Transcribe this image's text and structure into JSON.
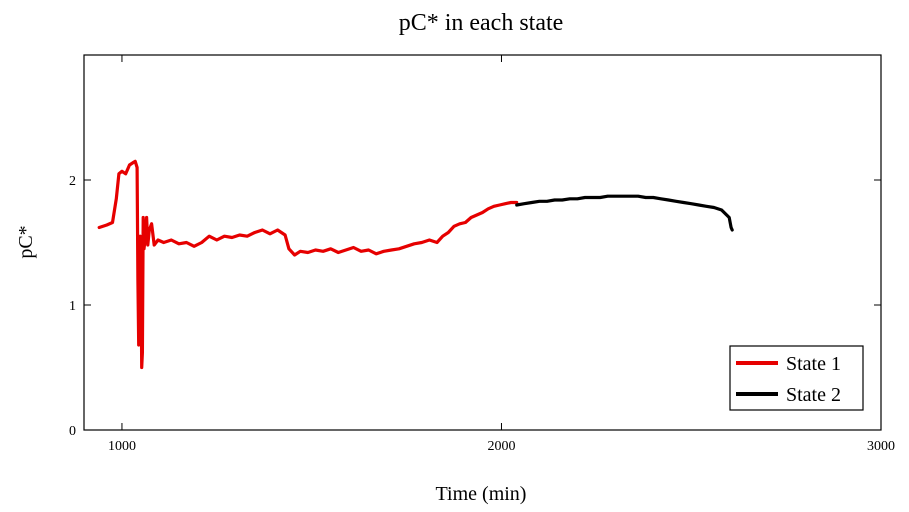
{
  "chart_data": {
    "type": "line",
    "title": "pC* in each state",
    "xlabel": "Time (min)",
    "ylabel": "pC*",
    "xlim": [
      900,
      3000
    ],
    "ylim": [
      0,
      3
    ],
    "x_ticks": [
      1000,
      2000,
      3000
    ],
    "y_ticks": [
      0,
      1,
      2
    ],
    "grid": false,
    "legend_position": "bottom-right",
    "series": [
      {
        "name": "State 1",
        "color": "#e60000",
        "points": [
          [
            940,
            1.62
          ],
          [
            960,
            1.64
          ],
          [
            975,
            1.66
          ],
          [
            985,
            1.85
          ],
          [
            992,
            2.05
          ],
          [
            1000,
            2.07
          ],
          [
            1010,
            2.05
          ],
          [
            1020,
            2.12
          ],
          [
            1030,
            2.14
          ],
          [
            1035,
            2.15
          ],
          [
            1040,
            2.1
          ],
          [
            1042,
            1.2
          ],
          [
            1044,
            0.68
          ],
          [
            1046,
            1.1
          ],
          [
            1048,
            1.55
          ],
          [
            1050,
            1.4
          ],
          [
            1052,
            0.5
          ],
          [
            1054,
            0.62
          ],
          [
            1056,
            1.7
          ],
          [
            1058,
            1.45
          ],
          [
            1062,
            1.55
          ],
          [
            1065,
            1.7
          ],
          [
            1068,
            1.48
          ],
          [
            1072,
            1.6
          ],
          [
            1078,
            1.65
          ],
          [
            1085,
            1.48
          ],
          [
            1095,
            1.52
          ],
          [
            1110,
            1.5
          ],
          [
            1130,
            1.52
          ],
          [
            1150,
            1.49
          ],
          [
            1170,
            1.5
          ],
          [
            1190,
            1.47
          ],
          [
            1210,
            1.5
          ],
          [
            1230,
            1.55
          ],
          [
            1250,
            1.52
          ],
          [
            1270,
            1.55
          ],
          [
            1290,
            1.54
          ],
          [
            1310,
            1.56
          ],
          [
            1330,
            1.55
          ],
          [
            1350,
            1.58
          ],
          [
            1370,
            1.6
          ],
          [
            1390,
            1.57
          ],
          [
            1410,
            1.6
          ],
          [
            1430,
            1.56
          ],
          [
            1440,
            1.45
          ],
          [
            1455,
            1.4
          ],
          [
            1470,
            1.43
          ],
          [
            1490,
            1.42
          ],
          [
            1510,
            1.44
          ],
          [
            1530,
            1.43
          ],
          [
            1550,
            1.45
          ],
          [
            1570,
            1.42
          ],
          [
            1590,
            1.44
          ],
          [
            1610,
            1.46
          ],
          [
            1630,
            1.43
          ],
          [
            1650,
            1.44
          ],
          [
            1670,
            1.41
          ],
          [
            1690,
            1.43
          ],
          [
            1710,
            1.44
          ],
          [
            1730,
            1.45
          ],
          [
            1750,
            1.47
          ],
          [
            1770,
            1.49
          ],
          [
            1790,
            1.5
          ],
          [
            1810,
            1.52
          ],
          [
            1830,
            1.5
          ],
          [
            1845,
            1.55
          ],
          [
            1860,
            1.58
          ],
          [
            1875,
            1.63
          ],
          [
            1890,
            1.65
          ],
          [
            1905,
            1.66
          ],
          [
            1920,
            1.7
          ],
          [
            1935,
            1.72
          ],
          [
            1950,
            1.74
          ],
          [
            1965,
            1.77
          ],
          [
            1980,
            1.79
          ],
          [
            1995,
            1.8
          ],
          [
            2010,
            1.81
          ],
          [
            2025,
            1.82
          ],
          [
            2040,
            1.82
          ]
        ]
      },
      {
        "name": "State 2",
        "color": "#000000",
        "points": [
          [
            2040,
            1.8
          ],
          [
            2060,
            1.81
          ],
          [
            2080,
            1.82
          ],
          [
            2100,
            1.83
          ],
          [
            2120,
            1.83
          ],
          [
            2140,
            1.84
          ],
          [
            2160,
            1.84
          ],
          [
            2180,
            1.85
          ],
          [
            2200,
            1.85
          ],
          [
            2220,
            1.86
          ],
          [
            2240,
            1.86
          ],
          [
            2260,
            1.86
          ],
          [
            2280,
            1.87
          ],
          [
            2300,
            1.87
          ],
          [
            2320,
            1.87
          ],
          [
            2340,
            1.87
          ],
          [
            2360,
            1.87
          ],
          [
            2380,
            1.86
          ],
          [
            2400,
            1.86
          ],
          [
            2420,
            1.85
          ],
          [
            2440,
            1.84
          ],
          [
            2460,
            1.83
          ],
          [
            2480,
            1.82
          ],
          [
            2500,
            1.81
          ],
          [
            2520,
            1.8
          ],
          [
            2540,
            1.79
          ],
          [
            2560,
            1.78
          ],
          [
            2580,
            1.76
          ],
          [
            2590,
            1.73
          ],
          [
            2600,
            1.7
          ],
          [
            2605,
            1.62
          ],
          [
            2608,
            1.6
          ]
        ]
      }
    ]
  }
}
